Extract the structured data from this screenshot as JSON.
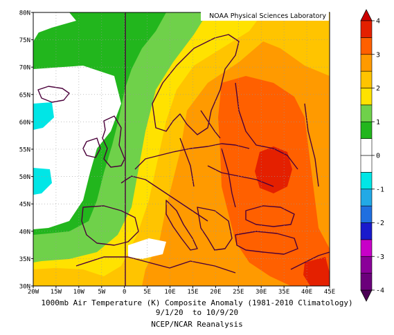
{
  "map": {
    "credit": "NOAA Physical Sciences Laboratory",
    "lat_labels": [
      "80N",
      "75N",
      "70N",
      "65N",
      "60N",
      "55N",
      "50N",
      "45N",
      "40N",
      "35N",
      "30N"
    ],
    "lon_labels": [
      "20W",
      "15W",
      "10W",
      "5W",
      "0",
      "5E",
      "10E",
      "15E",
      "20E",
      "25E",
      "30E",
      "35E",
      "40E",
      "45E"
    ]
  },
  "caption": {
    "line1": "1000mb Air Temperature (K) Composite Anomaly (1981-2010 Climatology)",
    "line2": "9/1/20  to 10/9/20",
    "line3": "NCEP/NCAR Reanalysis"
  },
  "colorbar": {
    "labels": [
      "4",
      "3",
      "2",
      "1",
      "0",
      "-1",
      "-2",
      "-3",
      "-4"
    ],
    "bins": [
      "#6b007b",
      "#8a0099",
      "#c800c8",
      "#1a1acc",
      "#1f6fe0",
      "#22a9e6",
      "#00e6e6",
      "#ffffff",
      "#ffffff",
      "#22b61d",
      "#6fd14a",
      "#ffe200",
      "#ffc400",
      "#ff9a00",
      "#ff6000",
      "#e42000"
    ],
    "min_arrow_color": "#4b0055",
    "max_arrow_color": "#cc0000"
  },
  "palette": {
    "white": "#ffffff",
    "green_dark": "#22b61d",
    "green_light": "#5ed13a",
    "yellow_light": "#ffe200",
    "yellow": "#ffc400",
    "orange_light": "#ff9a00",
    "orange": "#ff6000",
    "red": "#e42000",
    "cyan": "#00e6e6",
    "border": "#4a003a"
  }
}
